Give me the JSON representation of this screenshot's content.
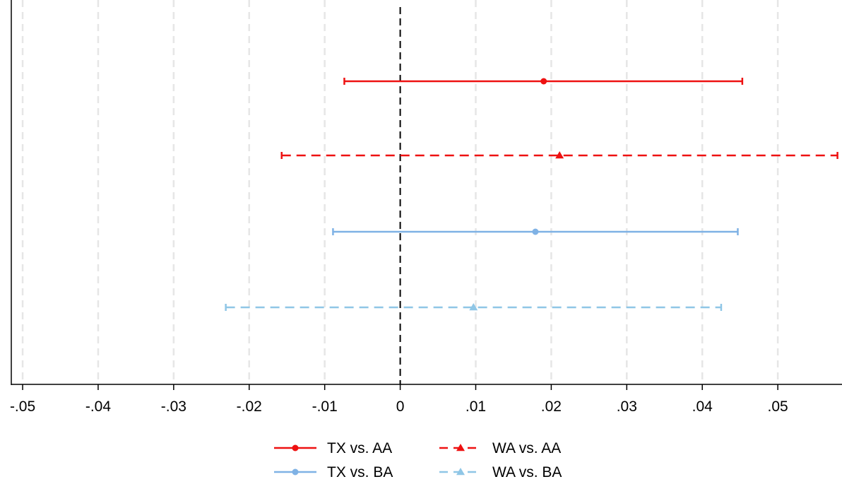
{
  "chart_data": {
    "type": "scatter",
    "subtype": "coefficient-plot-with-confidence-intervals",
    "title": "",
    "xlabel": "",
    "ylabel": "",
    "xlim": [
      -0.0515,
      0.0585
    ],
    "x_ticks": [
      -0.05,
      -0.04,
      -0.03,
      -0.02,
      -0.01,
      0,
      0.01,
      0.02,
      0.03,
      0.04,
      0.05
    ],
    "x_tick_labels": [
      "-.05",
      "-.04",
      "-.03",
      "-.02",
      "-.01",
      "0",
      ".01",
      ".02",
      ".03",
      ".04",
      ".05"
    ],
    "grid": "vertical dashed",
    "reference_line": {
      "x": 0,
      "style": "dashed",
      "color": "#000000"
    },
    "legend_position": "bottom",
    "series": [
      {
        "name": "TX vs. AA",
        "estimate": 0.019,
        "ci_low": -0.0074,
        "ci_high": 0.0453,
        "color": "#ee1111",
        "line_style": "solid",
        "marker": "circle"
      },
      {
        "name": "WA vs. AA",
        "estimate": 0.0211,
        "ci_low": -0.0157,
        "ci_high": 0.0579,
        "color": "#ee1111",
        "line_style": "dashed",
        "marker": "triangle"
      },
      {
        "name": "TX vs. BA",
        "estimate": 0.0179,
        "ci_low": -0.0089,
        "ci_high": 0.0447,
        "color": "#7fb2e5",
        "line_style": "solid",
        "marker": "circle"
      },
      {
        "name": "WA vs. BA",
        "estimate": 0.0097,
        "ci_low": -0.0231,
        "ci_high": 0.0425,
        "color": "#8fc6e6",
        "line_style": "dashed",
        "marker": "triangle"
      }
    ]
  }
}
